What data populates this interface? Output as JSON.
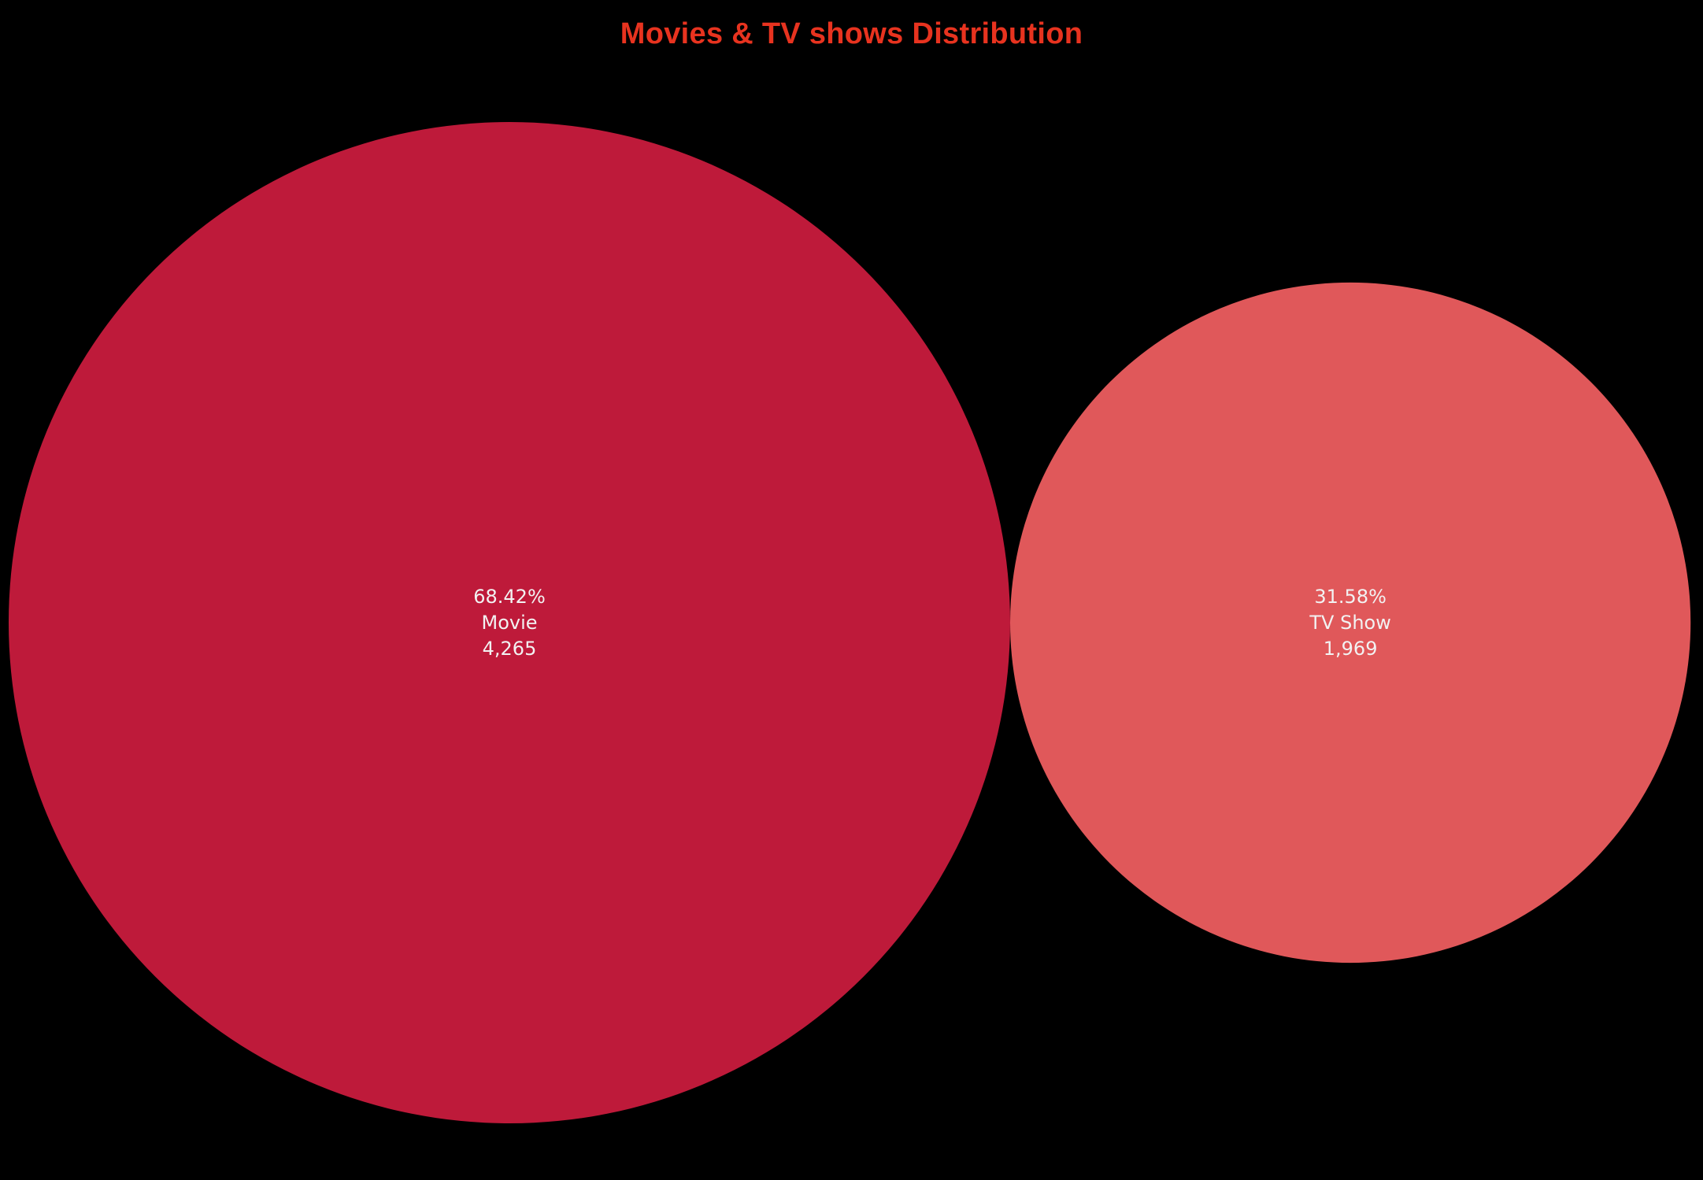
{
  "chart_data": {
    "type": "bubble",
    "title": "Movies & TV shows Distribution",
    "series": [
      {
        "category": "Movie",
        "value": 4265,
        "value_label": "4,265",
        "percent_label": "68.42%",
        "color": "#BE1A3A"
      },
      {
        "category": "TV Show",
        "value": 1969,
        "value_label": "1,969",
        "percent_label": "31.58%",
        "color": "#E0585A"
      }
    ]
  },
  "colors": {
    "background": "#000000",
    "title": "#E8331F",
    "label_text": "#F2F2F2"
  }
}
